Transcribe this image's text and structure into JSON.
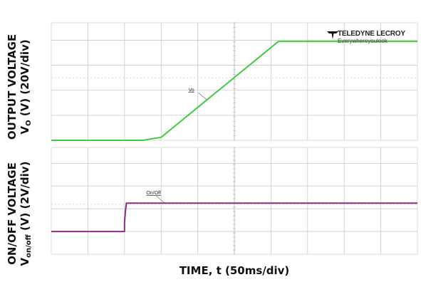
{
  "chart_data": [
    {
      "type": "line",
      "title": "",
      "ylabel_line1": "OUTPUT VOLTAGE",
      "ylabel_line2_main": "V",
      "ylabel_line2_sub": "O",
      "ylabel_line2_rest": " (V) (20V/div)",
      "xlabel": "TIME, t (50ms/div)",
      "x_units": "divisions (50ms/div)",
      "y_units": "divisions (20V/div)",
      "xlim": [
        0,
        10
      ],
      "ylim": [
        0,
        4.7
      ],
      "grid": true,
      "series": [
        {
          "name": "Vo",
          "color": "#3fcc3f",
          "x": [
            0,
            2.5,
            3.0,
            6.2,
            10
          ],
          "y": [
            0,
            0,
            0.12,
            3.95,
            3.95
          ]
        }
      ]
    },
    {
      "type": "line",
      "title": "",
      "ylabel_line1": "ON/OFF VOLTAGE",
      "ylabel_line2_main": "V",
      "ylabel_line2_sub": "on/off",
      "ylabel_line2_rest": " (V) (2V/div)",
      "xlabel": "TIME, t (50ms/div)",
      "x_units": "divisions (50ms/div)",
      "y_units": "divisions (2V/div)",
      "xlim": [
        0,
        10
      ],
      "ylim": [
        0,
        4.7
      ],
      "grid": true,
      "series": [
        {
          "name": "On/Off",
          "color": "#8b2c7a",
          "x": [
            0,
            2.0,
            2.0,
            2.02,
            2.05,
            2.05,
            10
          ],
          "y": [
            1.0,
            1.0,
            1.4,
            1.8,
            2.25,
            2.25,
            2.25
          ]
        }
      ]
    }
  ],
  "brand": {
    "name": "TELEDYNE LECROY",
    "tagline": "Everywhereyoulook"
  },
  "colors": {
    "grid": "#c9c9c9",
    "panel_border": "#dcdcdc",
    "dotline": "#d8d8d8"
  }
}
